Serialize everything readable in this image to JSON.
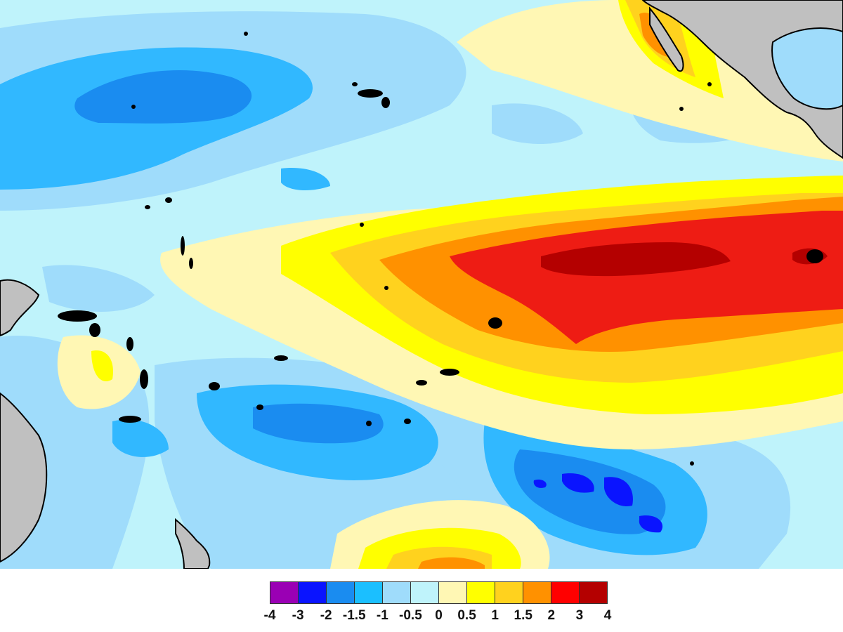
{
  "map": {
    "background": "#bff3fb",
    "land_color": "#c0c0c0",
    "coast_color": "#000000",
    "regions": [
      {
        "name": "band-0to0.5",
        "color": "#fff7b4"
      },
      {
        "name": "band-0.5to1",
        "color": "#ffff00"
      },
      {
        "name": "band-1to1.5",
        "color": "#ffd21e"
      },
      {
        "name": "band-1.5to2",
        "color": "#ff9100"
      },
      {
        "name": "band-2to3",
        "color": "#ee1c14"
      },
      {
        "name": "band-3to4",
        "color": "#b40000"
      },
      {
        "name": "band-neg0.5to-1",
        "color": "#9fdcfb"
      },
      {
        "name": "band-neg1to-1.5",
        "color": "#31b8ff"
      },
      {
        "name": "band-neg1.5to-2",
        "color": "#1a8cf0"
      },
      {
        "name": "band-neg2to-3",
        "color": "#0a14ff"
      }
    ]
  },
  "legend": {
    "colors": [
      "#9a00b4",
      "#0a14ff",
      "#1a8cf0",
      "#1bbfff",
      "#9fdcfb",
      "#bff3fb",
      "#fff7b4",
      "#ffff00",
      "#ffd21e",
      "#ff9100",
      "#ff0000",
      "#b40000"
    ],
    "ticks": [
      "-4",
      "-3",
      "-2",
      "-1.5",
      "-1",
      "-0.5",
      "0",
      "0.5",
      "1",
      "1.5",
      "2",
      "3",
      "4"
    ]
  }
}
